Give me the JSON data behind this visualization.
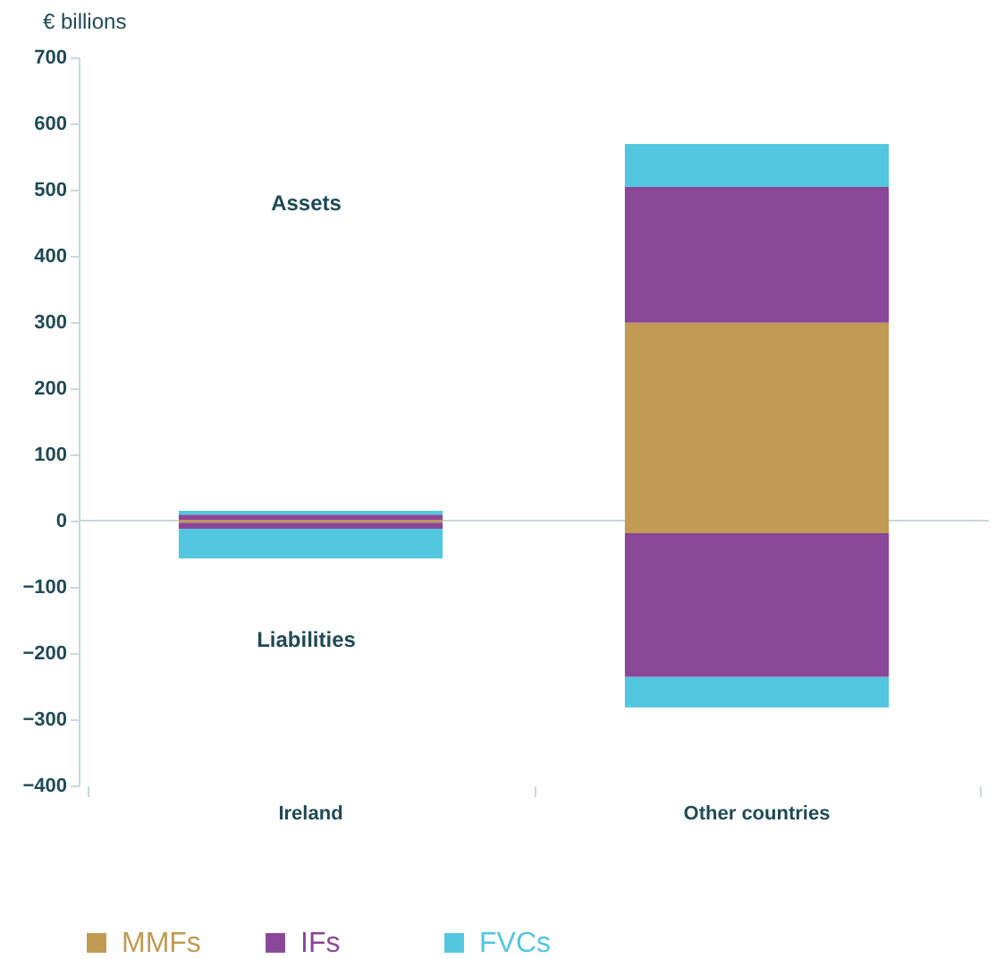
{
  "chart_data": {
    "type": "bar",
    "stacked": true,
    "ylabel": "€ billions",
    "categories": [
      "Ireland",
      "Other countries"
    ],
    "series": [
      {
        "name": "MMFs",
        "color": "#c19a53",
        "values": [
          1,
          299
        ]
      },
      {
        "name": "IFs",
        "color": "#8a4797",
        "values": [
          8,
          205
        ]
      },
      {
        "name": "FVCs",
        "color": "#53c6e0",
        "values": [
          6,
          65
        ]
      },
      {
        "color": "#c19a53",
        "values": [
          -3,
          -19
        ]
      },
      {
        "color": "#8a4797",
        "values": [
          -9,
          -217
        ]
      },
      {
        "color": "#53c6e0",
        "values": [
          -45,
          -46
        ]
      }
    ],
    "ylim": [
      -400,
      700
    ],
    "yticks": [
      -400,
      -300,
      -200,
      -100,
      0,
      100,
      200,
      300,
      400,
      500,
      600,
      700
    ],
    "ref_lines": [
      {
        "axis": "y",
        "value": 0,
        "color": "#c9d8dc"
      }
    ],
    "annotations": [
      "Assets",
      "Liabilities"
    ],
    "grid": false,
    "legend": "bottom"
  }
}
